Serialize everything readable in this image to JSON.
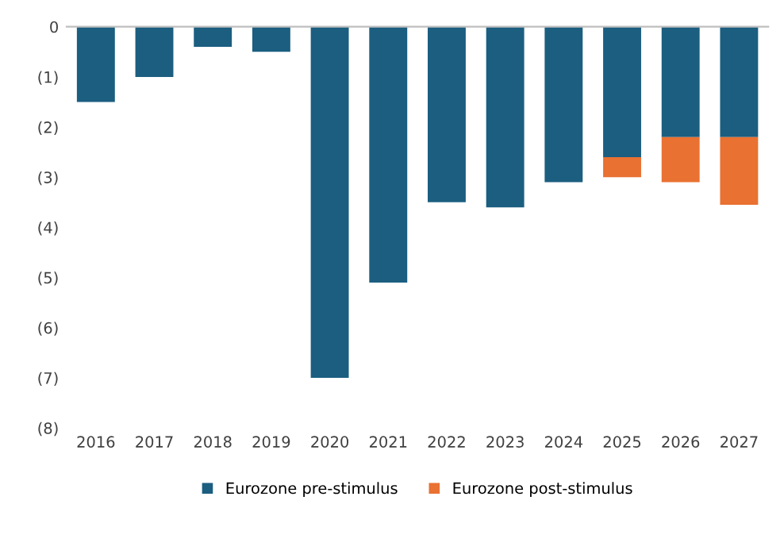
{
  "chart_data": {
    "type": "bar",
    "stacked": true,
    "categories": [
      "2016",
      "2017",
      "2018",
      "2019",
      "2020",
      "2021",
      "2022",
      "2023",
      "2024",
      "2025",
      "2026",
      "2027"
    ],
    "series": [
      {
        "name": "Eurozone pre-stimulus",
        "color": "#1b5e80",
        "values": [
          -1.5,
          -1.0,
          -0.4,
          -0.5,
          -7.0,
          -5.1,
          -3.5,
          -3.6,
          -3.1,
          -2.6,
          -2.2,
          -2.2
        ]
      },
      {
        "name": "Eurozone post-stimulus",
        "color": "#e97132",
        "values": [
          null,
          null,
          null,
          null,
          null,
          null,
          null,
          null,
          null,
          -0.4,
          -0.9,
          -1.35
        ]
      }
    ],
    "ylim": [
      -8,
      0
    ],
    "yticks": [
      0,
      {
        "value": -1,
        "label": "(1)"
      },
      {
        "value": -2,
        "label": "(2)"
      },
      {
        "value": -3,
        "label": "(3)"
      },
      {
        "value": -4,
        "label": "(4)"
      },
      {
        "value": -5,
        "label": "(5)"
      },
      {
        "value": -6,
        "label": "(6)"
      },
      {
        "value": -7,
        "label": "(7)"
      },
      {
        "value": -8,
        "label": "(8)"
      }
    ],
    "grid": false,
    "legend": "bottom"
  }
}
